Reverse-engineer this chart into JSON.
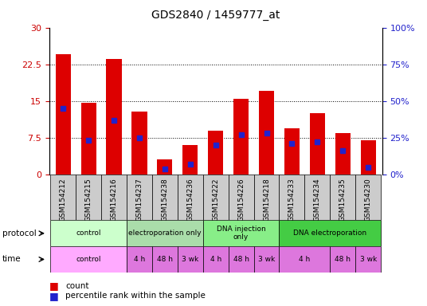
{
  "title": "GDS2840 / 1459777_at",
  "samples": [
    "GSM154212",
    "GSM154215",
    "GSM154216",
    "GSM154237",
    "GSM154238",
    "GSM154236",
    "GSM154222",
    "GSM154226",
    "GSM154218",
    "GSM154233",
    "GSM154234",
    "GSM154235",
    "GSM154230"
  ],
  "counts": [
    24.5,
    14.7,
    23.5,
    12.8,
    3.0,
    6.0,
    9.0,
    15.5,
    17.0,
    9.5,
    12.5,
    8.5,
    7.0
  ],
  "percentile_ranks": [
    45,
    23,
    37,
    25,
    4,
    7,
    20,
    27,
    28,
    21,
    22,
    16,
    5
  ],
  "ylim_left": [
    0,
    30
  ],
  "ylim_right": [
    0,
    100
  ],
  "yticks_left": [
    0,
    7.5,
    15,
    22.5,
    30
  ],
  "yticks_right": [
    0,
    25,
    50,
    75,
    100
  ],
  "ytick_labels_left": [
    "0",
    "7.5",
    "15",
    "22.5",
    "30"
  ],
  "ytick_labels_right": [
    "0%",
    "25%",
    "50%",
    "75%",
    "100%"
  ],
  "bar_color": "#dd0000",
  "blue_color": "#2222cc",
  "bg_color": "#ffffff",
  "tick_label_color_left": "#cc0000",
  "tick_label_color_right": "#2222cc",
  "sample_bg_color": "#cccccc",
  "proto_data": [
    {
      "label": "control",
      "start": 0,
      "end": 3,
      "color": "#ccffcc"
    },
    {
      "label": "electroporation only",
      "start": 3,
      "end": 6,
      "color": "#aaddaa"
    },
    {
      "label": "DNA injection\nonly",
      "start": 6,
      "end": 9,
      "color": "#88ee88"
    },
    {
      "label": "DNA electroporation",
      "start": 9,
      "end": 13,
      "color": "#44cc44"
    }
  ],
  "time_data": [
    {
      "label": "control",
      "start": 0,
      "end": 3,
      "color": "#ffaaff"
    },
    {
      "label": "4 h",
      "start": 3,
      "end": 4,
      "color": "#dd77dd"
    },
    {
      "label": "48 h",
      "start": 4,
      "end": 5,
      "color": "#dd77dd"
    },
    {
      "label": "3 wk",
      "start": 5,
      "end": 6,
      "color": "#dd77dd"
    },
    {
      "label": "4 h",
      "start": 6,
      "end": 7,
      "color": "#dd77dd"
    },
    {
      "label": "48 h",
      "start": 7,
      "end": 8,
      "color": "#dd77dd"
    },
    {
      "label": "3 wk",
      "start": 8,
      "end": 9,
      "color": "#dd77dd"
    },
    {
      "label": "4 h",
      "start": 9,
      "end": 11,
      "color": "#dd77dd"
    },
    {
      "label": "48 h",
      "start": 11,
      "end": 12,
      "color": "#dd77dd"
    },
    {
      "label": "3 wk",
      "start": 12,
      "end": 13,
      "color": "#dd77dd"
    }
  ]
}
